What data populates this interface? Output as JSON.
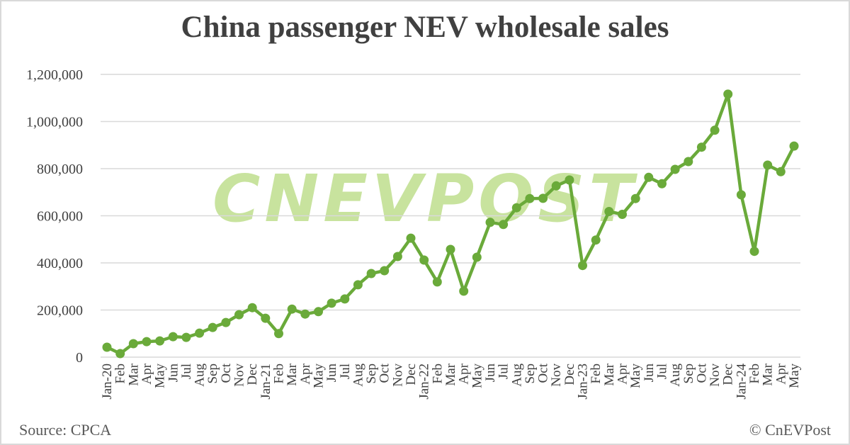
{
  "header": {
    "title": "China passenger NEV wholesale sales"
  },
  "footer": {
    "source": "Source: CPCA",
    "copyright": "© CnEVPost"
  },
  "watermark": {
    "text": "CNEVPOST"
  },
  "colors": {
    "line": "#6aaa3a",
    "marker": "#6aaa3a",
    "grid": "#d9d9d9",
    "watermark": "#b5d97e",
    "text": "#404040"
  },
  "chart_data": {
    "type": "line",
    "title": "China passenger NEV wholesale sales",
    "xlabel": "",
    "ylabel": "",
    "ylim": [
      0,
      1200000
    ],
    "yticks": [
      0,
      200000,
      400000,
      600000,
      800000,
      1000000,
      1200000
    ],
    "ytick_labels": [
      "0",
      "200,000",
      "400,000",
      "600,000",
      "800,000",
      "1,000,000",
      "1,200,000"
    ],
    "grid": true,
    "legend": "none",
    "categories": [
      "Jan-20",
      "Feb",
      "Mar",
      "Apr",
      "May",
      "Jun",
      "Jul",
      "Aug",
      "Sep",
      "Oct",
      "Nov",
      "Dec",
      "Jan-21",
      "Feb",
      "Mar",
      "Apr",
      "May",
      "Jun",
      "Jul",
      "Aug",
      "Sep",
      "Oct",
      "Nov",
      "Dec",
      "Jan-22",
      "Feb",
      "Mar",
      "Apr",
      "May",
      "Jun",
      "Jul",
      "Aug",
      "Sep",
      "Oct",
      "Nov",
      "Dec",
      "Jan-23",
      "Feb",
      "Mar",
      "Apr",
      "May",
      "Jun",
      "Jul",
      "Aug",
      "Sep",
      "Oct",
      "Nov",
      "Dec",
      "Jan-24",
      "Feb",
      "Mar",
      "Apr",
      "May"
    ],
    "series": [
      {
        "name": "NEV wholesale sales",
        "values": [
          42000,
          15000,
          57000,
          66000,
          69000,
          87000,
          84000,
          102000,
          126000,
          147000,
          180000,
          210000,
          165000,
          100000,
          204000,
          183000,
          193000,
          229000,
          247000,
          307000,
          355000,
          367000,
          427000,
          505000,
          412000,
          319000,
          457000,
          280000,
          424000,
          572000,
          563000,
          634000,
          673000,
          674000,
          727000,
          752000,
          389000,
          497000,
          618000,
          606000,
          673000,
          763000,
          736000,
          797000,
          830000,
          891000,
          963000,
          1116000,
          689000,
          449000,
          815000,
          787000,
          896000
        ]
      }
    ]
  }
}
